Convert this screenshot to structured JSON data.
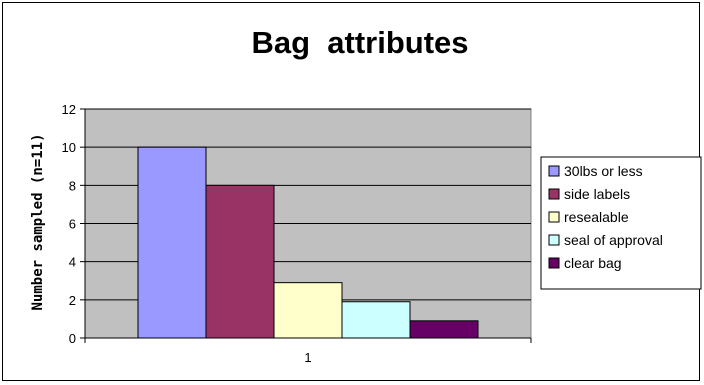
{
  "chart_data": {
    "type": "bar",
    "title": "Bag  attributes",
    "xlabel": "",
    "ylabel": "Number sampled (n=11)",
    "categories": [
      "1"
    ],
    "ylim": [
      0,
      12
    ],
    "yticks": [
      0,
      2,
      4,
      6,
      8,
      10,
      12
    ],
    "grid": true,
    "legend_position": "right",
    "plot_background": "#c0c0c0",
    "series": [
      {
        "name": "30lbs or less",
        "values": [
          10
        ],
        "color": "#9999ff"
      },
      {
        "name": "side labels",
        "values": [
          8
        ],
        "color": "#993366"
      },
      {
        "name": "resealable",
        "values": [
          2.9
        ],
        "color": "#ffffcc"
      },
      {
        "name": "seal of approval",
        "values": [
          1.9
        ],
        "color": "#ccffff"
      },
      {
        "name": "clear bag",
        "values": [
          0.9
        ],
        "color": "#660066"
      }
    ]
  }
}
